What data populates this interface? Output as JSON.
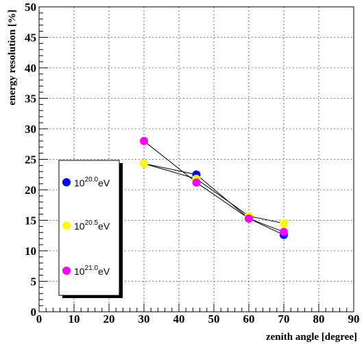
{
  "chart_data": {
    "type": "scatter",
    "xlabel": "zenith angle [degree]",
    "ylabel": "energy resolution [%]",
    "xlim": [
      0,
      90
    ],
    "ylim": [
      0,
      50
    ],
    "x_ticks": [
      0,
      10,
      20,
      30,
      40,
      50,
      60,
      70,
      80,
      90
    ],
    "y_ticks": [
      0,
      5,
      10,
      15,
      20,
      25,
      30,
      35,
      40,
      45,
      50
    ],
    "grid": true,
    "legend_position": "left-bottom",
    "series": [
      {
        "name_base": "10",
        "name_exp": "20.0",
        "name_unit": "eV",
        "color": "#0000ff",
        "x": [
          30,
          45,
          60,
          70
        ],
        "y": [
          24.3,
          22.5,
          15.3,
          12.6
        ]
      },
      {
        "name_base": "10",
        "name_exp": "20.5",
        "name_unit": "eV",
        "color": "#ffff00",
        "x": [
          30,
          45,
          60,
          70
        ],
        "y": [
          24.3,
          21.8,
          15.7,
          14.5
        ]
      },
      {
        "name_base": "10",
        "name_exp": "21.0",
        "name_unit": "eV",
        "color": "#ff00ff",
        "x": [
          30,
          45,
          60,
          70
        ],
        "y": [
          28.0,
          21.2,
          15.3,
          13.1
        ]
      }
    ]
  }
}
